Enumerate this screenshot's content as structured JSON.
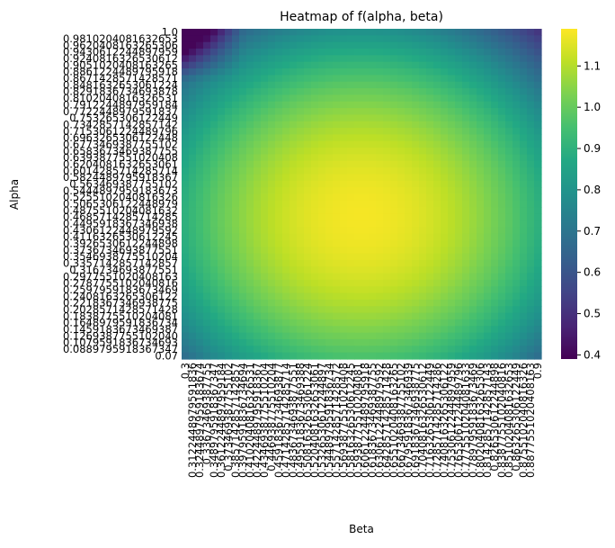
{
  "chart_data": {
    "type": "heatmap",
    "title": "Heatmap of f(alpha, beta)",
    "xlabel": "Beta",
    "ylabel": "Alpha",
    "x_ticks": [
      "0.3",
      "0.3122448979591836",
      "0.3244897959183674",
      "0.33673469387755",
      "0.3489795918367347",
      "0.3612244897959184",
      "0.373469387755102",
      "0.3857142857142857",
      "0.3979591836734694",
      "0.4102040816326531",
      "0.4224489795918367",
      "0.4346938775510204",
      "0.446938775510204",
      "0.4591836734693877",
      "0.4714285714285714",
      "0.4836734693877551",
      "0.4959183673469388",
      "0.5081632653061224",
      "0.5204081632653061",
      "0.5326530612244897",
      "0.5448979591836734",
      "0.5571428571428572",
      "0.5693877551020408",
      "0.5816326530612245",
      "0.5938775510204081",
      "0.6061224489795918",
      "0.6183673469387755",
      "0.6306122448979592",
      "0.6428571428571428",
      "0.6551020408163265",
      "0.6673469387755102",
      "0.6795918367346939",
      "0.6918367346938775",
      "0.7040816326530612",
      "0.7163265306122449",
      "0.7285714285714286",
      "0.7408163265306122",
      "0.7530612244897959",
      "0.7653061224489796",
      "0.7775510204081633",
      "0.7897959183673469",
      "0.8020408163265306",
      "0.8142857142857143",
      "0.826530612244898",
      "0.8387755102040816",
      "0.8510204081632653",
      "0.863265306122449",
      "0.8755102040816326",
      "0.8877551020408163",
      "0.9"
    ],
    "y_ticks": [
      "1.0",
      "0.9810204081632653",
      "0.9620408163265306",
      "0.9430612244897959",
      "0.9240816326530612",
      "0.9051020408163265",
      "0.8861224489795918",
      "0.8671428571428571",
      "0.8481632653061224",
      "0.8291836734693878",
      "0.8102040816326531",
      "0.7912244897959184",
      "0.7722448979591837",
      "0.753265306122449",
      "0.7342857142857142",
      "0.7153061224489796",
      "0.6963265306122448",
      "0.6773469387755102",
      "0.6583673469387755",
      "0.6393877551020408",
      "0.6204081632653061",
      "0.6014285714285714",
      "0.5824489795918367",
      "0.563469387755102",
      "0.5444897959183673",
      "0.5255102040816326",
      "0.5065306122448979",
      "0.4875510204081632",
      "0.4685714285714285",
      "0.4495918367346938",
      "0.4306122448979592",
      "0.4116326530612245",
      "0.3926530612244898",
      "0.3736734693877551",
      "0.3546938775510204",
      "0.3357142857142857",
      "0.316734693877551",
      "0.2977551020408163",
      "0.2787755102040816",
      "0.2597959183673469",
      "0.2408163265306122",
      "0.2218367346938775",
      "0.2028571428571428",
      "0.1838775510204081",
      "0.1648979591836734",
      "0.1459183673469387",
      "0.1269387755102040",
      "0.1079591836734693",
      "0.0889795918367347",
      "0.07"
    ],
    "surface": {
      "peak_value": 1.18,
      "peak_beta": 0.6,
      "peak_alpha": 0.47,
      "min_value": 0.4,
      "min_at": "top-left"
    },
    "colorbar": {
      "colormap": "viridis",
      "range": [
        0.39,
        1.19
      ],
      "ticks": [
        "0.4",
        "0.5",
        "0.6",
        "0.7",
        "0.8",
        "0.9",
        "1.0",
        "1.1"
      ]
    }
  }
}
